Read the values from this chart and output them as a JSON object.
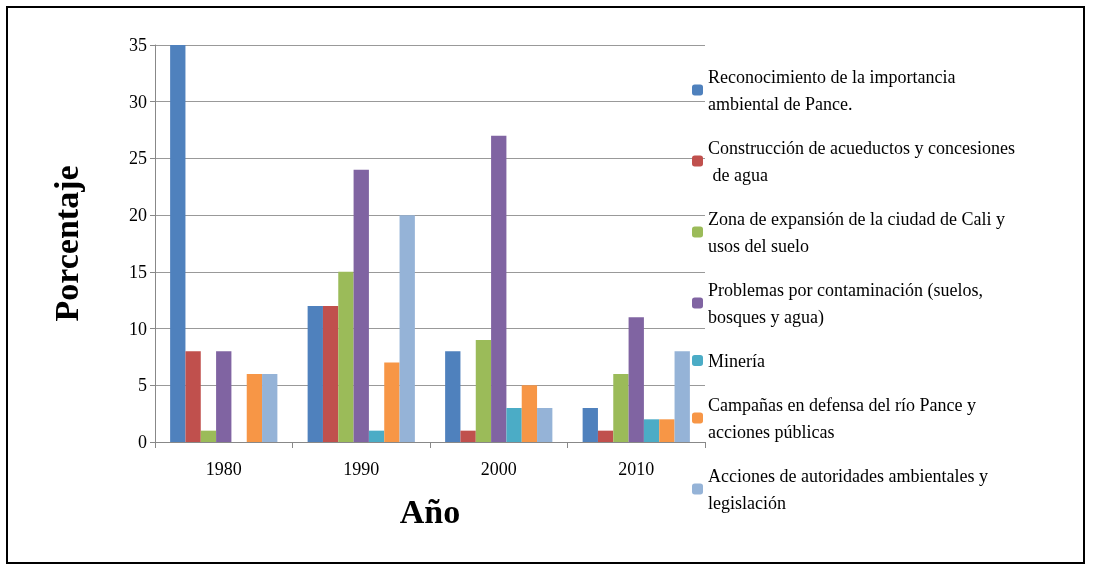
{
  "chart_data": {
    "type": "bar",
    "xlabel": "Año",
    "ylabel": "Porcentaje",
    "categories": [
      "1980",
      "1990",
      "2000",
      "2010"
    ],
    "series": [
      {
        "name": "Reconocimiento de la importancia ambiental de Pance.",
        "color": "#4f81bd",
        "values": [
          35,
          12,
          8,
          3
        ]
      },
      {
        "name": "Construcción de acueductos y concesiones de agua",
        "color": "#c0504d",
        "values": [
          8,
          12,
          1,
          1
        ]
      },
      {
        "name": "Zona de expansión de la ciudad de Cali y usos del suelo",
        "color": "#9bbb59",
        "values": [
          1,
          15,
          9,
          6
        ]
      },
      {
        "name": "Problemas por contaminación (suelos, bosques y agua)",
        "color": "#8064a2",
        "values": [
          8,
          24,
          27,
          11
        ]
      },
      {
        "name": "Minería",
        "color": "#4bacc6",
        "values": [
          0,
          1,
          3,
          2
        ]
      },
      {
        "name": "Campañas en defensa del río Pance y  acciones públicas",
        "color": "#f79646",
        "values": [
          6,
          7,
          5,
          2
        ]
      },
      {
        "name": "Acciones de autoridades ambientales y legislación",
        "color": "#95b3d7",
        "values": [
          6,
          20,
          3,
          8
        ]
      }
    ],
    "ylim": [
      0,
      35
    ],
    "yticks": [
      0,
      5,
      10,
      15,
      20,
      25,
      30,
      35
    ],
    "grid": "y",
    "legend": "right"
  }
}
